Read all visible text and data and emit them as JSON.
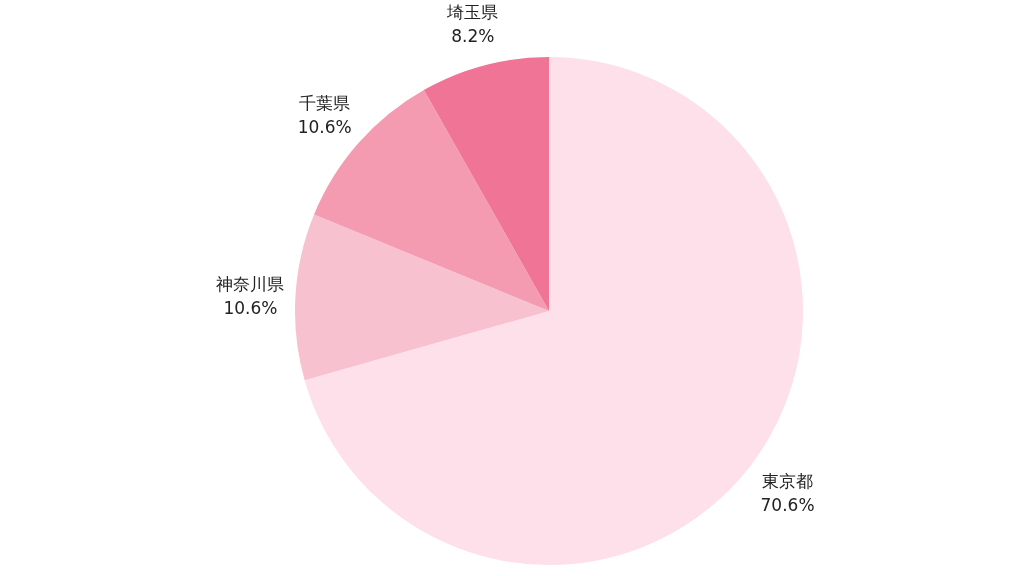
{
  "chart_data": {
    "type": "pie",
    "categories": [
      "東京都",
      "神奈川県",
      "千葉県",
      "埼玉県"
    ],
    "values": [
      70.6,
      10.6,
      10.6,
      8.2
    ],
    "colors": [
      "#fde0e9",
      "#f7c1d0",
      "#f49bb2",
      "#ef7496"
    ],
    "value_labels": [
      "70.6%",
      "10.6%",
      "10.6%",
      "8.2%"
    ]
  }
}
